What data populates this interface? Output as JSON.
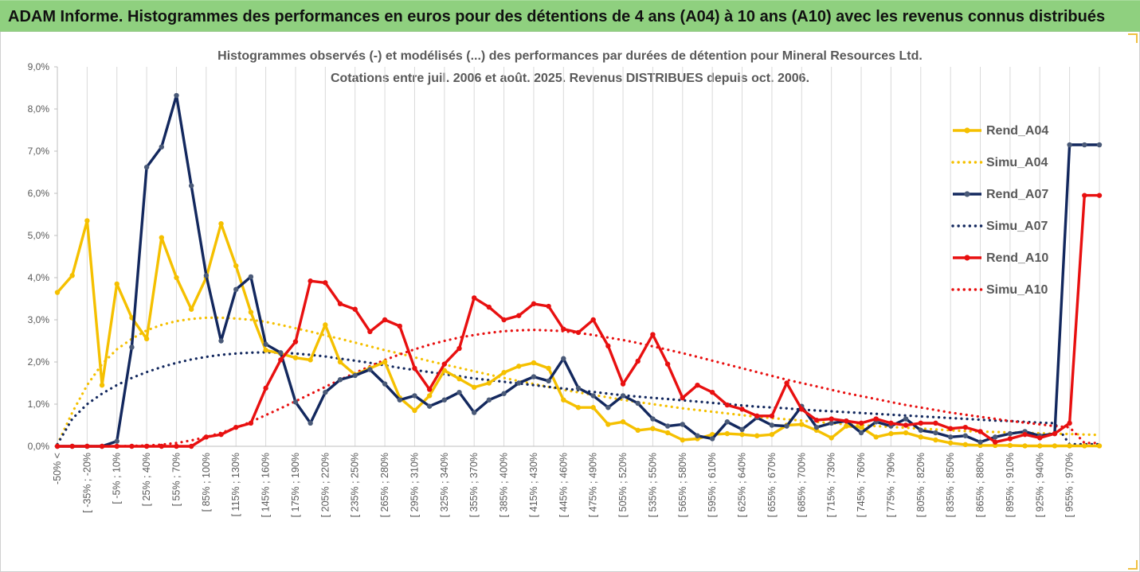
{
  "banner_title": "ADAM Informe. Histogrammes des performances en euros pour des détentions de 4 ans (A04) à 10 ans (A10) avec les revenus connus distribués",
  "colors": {
    "banner_bg": "#8fd07f",
    "A04": "#f5c000",
    "A07": "#13285e",
    "A10": "#e81010",
    "axis_text": "#595959",
    "grid": "#d9d9d9"
  },
  "chart_data": {
    "type": "line",
    "title": "Histogrammes observés (-) et modélisés (...) des performances par durées de détention pour Mineral Resources Ltd.",
    "subtitle": "Cotations entre juil. 2006 et août. 2025. Revenus DISTRIBUES depuis oct. 2006.",
    "xlabel": "",
    "ylabel": "",
    "ylim": [
      0,
      9
    ],
    "y_ticks": [
      "0,0%",
      "1,0%",
      "2,0%",
      "3,0%",
      "4,0%",
      "5,0%",
      "6,0%",
      "7,0%",
      "8,0%",
      "9,0%"
    ],
    "grid": "vertical",
    "legend_position": "right",
    "x_tick_labels": [
      "-50% <",
      "[ -35% ; -20%",
      "[ -5% ; 10%",
      "[ 25% ; 40%",
      "[ 55% ; 70%",
      "[ 85% ; 100%",
      "[ 115% ; 130%",
      "[ 145% ; 160%",
      "[ 175% ; 190%",
      "[ 205% ; 220%",
      "[ 235% ; 250%",
      "[ 265% ; 280%",
      "[ 295% ; 310%",
      "[ 325% ; 340%",
      "[ 355% ; 370%",
      "[ 385% ; 400%",
      "[ 415% ; 430%",
      "[ 445% ; 460%",
      "[ 475% ; 490%",
      "[ 505% ; 520%",
      "[ 535% ; 550%",
      "[ 565% ; 580%",
      "[ 595% ; 610%",
      "[ 625% ; 640%",
      "[ 655% ; 670%",
      "[ 685% ; 700%",
      "[ 715% ; 730%",
      "[ 745% ; 760%",
      "[ 775% ; 790%",
      "[ 805% ; 820%",
      "[ 835% ; 850%",
      "[ 865% ; 880%",
      "[ 895% ; 910%",
      "[ 925% ; 940%",
      "[ 955% ; 970%"
    ],
    "series": [
      {
        "name": "Rend_A04",
        "style": "solid",
        "color": "#f5c000",
        "values": [
          3.65,
          4.05,
          5.35,
          1.45,
          3.85,
          3.05,
          2.55,
          4.95,
          4.0,
          3.25,
          4.0,
          5.28,
          4.28,
          3.18,
          2.28,
          2.2,
          2.1,
          2.05,
          2.88,
          2.0,
          1.7,
          1.85,
          2.0,
          1.15,
          0.85,
          1.2,
          1.8,
          1.6,
          1.4,
          1.5,
          1.75,
          1.9,
          1.98,
          1.85,
          1.1,
          0.92,
          0.92,
          0.52,
          0.58,
          0.38,
          0.42,
          0.32,
          0.15,
          0.18,
          0.28,
          0.3,
          0.28,
          0.25,
          0.28,
          0.5,
          0.52,
          0.38,
          0.2,
          0.48,
          0.45,
          0.22,
          0.3,
          0.32,
          0.22,
          0.15,
          0.08,
          0.04,
          0.02,
          0.02,
          0.02,
          0.01,
          0.01,
          0.01,
          0.01,
          0.01,
          0.01
        ]
      },
      {
        "name": "Simu_A04",
        "style": "dotted",
        "color": "#f5c000",
        "values": [
          0.05,
          0.8,
          1.45,
          1.95,
          2.3,
          2.55,
          2.75,
          2.88,
          2.97,
          3.02,
          3.05,
          3.05,
          3.03,
          3.0,
          2.95,
          2.88,
          2.8,
          2.72,
          2.63,
          2.55,
          2.46,
          2.37,
          2.28,
          2.2,
          2.11,
          2.02,
          1.94,
          1.86,
          1.78,
          1.7,
          1.62,
          1.55,
          1.48,
          1.41,
          1.34,
          1.28,
          1.22,
          1.16,
          1.1,
          1.05,
          1.0,
          0.95,
          0.9,
          0.86,
          0.82,
          0.78,
          0.74,
          0.7,
          0.67,
          0.64,
          0.61,
          0.58,
          0.55,
          0.52,
          0.5,
          0.48,
          0.46,
          0.44,
          0.42,
          0.4,
          0.38,
          0.36,
          0.35,
          0.34,
          0.33,
          0.32,
          0.31,
          0.3,
          0.29,
          0.28,
          0.27
        ]
      },
      {
        "name": "Rend_A07",
        "style": "solid",
        "color": "#13285e",
        "values": [
          0.0,
          0.0,
          0.0,
          0.0,
          0.12,
          2.35,
          6.62,
          7.1,
          8.32,
          6.18,
          4.05,
          2.5,
          3.72,
          4.02,
          2.42,
          2.22,
          1.05,
          0.55,
          1.28,
          1.58,
          1.68,
          1.82,
          1.48,
          1.1,
          1.2,
          0.95,
          1.1,
          1.28,
          0.8,
          1.1,
          1.25,
          1.5,
          1.65,
          1.55,
          2.08,
          1.38,
          1.2,
          0.92,
          1.2,
          1.02,
          0.65,
          0.48,
          0.52,
          0.25,
          0.18,
          0.58,
          0.4,
          0.68,
          0.5,
          0.48,
          0.95,
          0.45,
          0.55,
          0.6,
          0.32,
          0.58,
          0.48,
          0.65,
          0.38,
          0.32,
          0.22,
          0.25,
          0.1,
          0.22,
          0.3,
          0.35,
          0.25,
          0.3,
          7.15,
          7.15,
          7.15
        ]
      },
      {
        "name": "Simu_A07",
        "style": "dotted",
        "color": "#13285e",
        "values": [
          0.05,
          0.65,
          1.0,
          1.25,
          1.45,
          1.62,
          1.76,
          1.88,
          1.98,
          2.06,
          2.12,
          2.17,
          2.2,
          2.22,
          2.23,
          2.22,
          2.2,
          2.17,
          2.13,
          2.08,
          2.03,
          1.98,
          1.92,
          1.86,
          1.81,
          1.76,
          1.71,
          1.66,
          1.61,
          1.57,
          1.53,
          1.49,
          1.45,
          1.41,
          1.37,
          1.33,
          1.29,
          1.25,
          1.21,
          1.18,
          1.15,
          1.12,
          1.09,
          1.06,
          1.03,
          1.0,
          0.97,
          0.94,
          0.92,
          0.9,
          0.87,
          0.85,
          0.83,
          0.81,
          0.79,
          0.77,
          0.75,
          0.73,
          0.71,
          0.69,
          0.67,
          0.65,
          0.63,
          0.61,
          0.6,
          0.58,
          0.56,
          0.55,
          0.05,
          0.05,
          0.05
        ]
      },
      {
        "name": "Rend_A10",
        "style": "solid",
        "color": "#e81010",
        "values": [
          0.0,
          0.0,
          0.0,
          0.0,
          0.0,
          0.0,
          0.0,
          0.0,
          0.0,
          0.0,
          0.22,
          0.28,
          0.45,
          0.55,
          1.38,
          2.05,
          2.48,
          3.92,
          3.88,
          3.38,
          3.25,
          2.72,
          3.0,
          2.85,
          1.85,
          1.35,
          1.95,
          2.32,
          3.52,
          3.3,
          3.0,
          3.1,
          3.38,
          3.32,
          2.78,
          2.7,
          3.0,
          2.38,
          1.48,
          2.02,
          2.65,
          1.95,
          1.15,
          1.45,
          1.28,
          0.98,
          0.88,
          0.72,
          0.72,
          1.5,
          0.88,
          0.62,
          0.65,
          0.6,
          0.55,
          0.65,
          0.55,
          0.5,
          0.55,
          0.55,
          0.42,
          0.45,
          0.35,
          0.1,
          0.18,
          0.28,
          0.2,
          0.3,
          0.55,
          5.95,
          5.95
        ]
      },
      {
        "name": "Simu_A10",
        "style": "dotted",
        "color": "#e81010",
        "values": [
          0.0,
          0.0,
          0.0,
          0.0,
          0.0,
          0.01,
          0.02,
          0.04,
          0.08,
          0.14,
          0.22,
          0.32,
          0.44,
          0.58,
          0.74,
          0.9,
          1.07,
          1.24,
          1.41,
          1.58,
          1.74,
          1.9,
          2.05,
          2.18,
          2.3,
          2.41,
          2.5,
          2.58,
          2.64,
          2.69,
          2.73,
          2.75,
          2.76,
          2.75,
          2.73,
          2.69,
          2.64,
          2.58,
          2.52,
          2.45,
          2.37,
          2.29,
          2.21,
          2.12,
          2.03,
          1.94,
          1.85,
          1.76,
          1.67,
          1.58,
          1.5,
          1.42,
          1.34,
          1.26,
          1.19,
          1.12,
          1.05,
          0.98,
          0.92,
          0.86,
          0.8,
          0.75,
          0.7,
          0.65,
          0.6,
          0.56,
          0.52,
          0.48,
          0.45,
          0.08,
          0.08
        ]
      }
    ]
  }
}
